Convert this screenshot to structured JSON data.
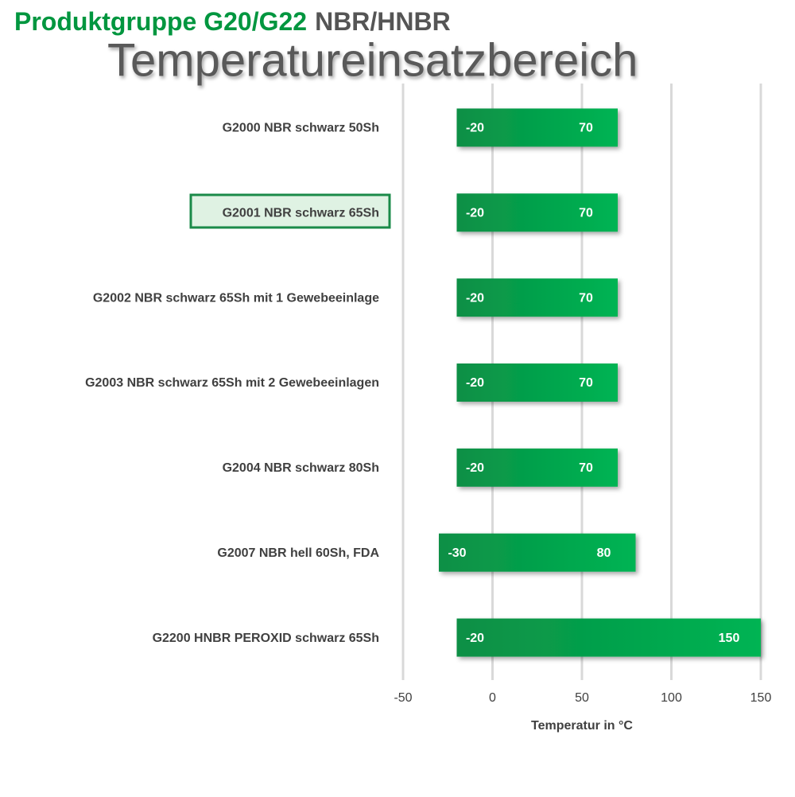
{
  "chart_data": {
    "type": "range_bar",
    "title": "Produktgruppe G20/G22",
    "title_suffix": "NBR/HNBR",
    "subtitle": "Temperatureinsatzbereich",
    "x_label": "Temperatur in °C",
    "categories": [
      "G2000 NBR schwarz 50Sh",
      "G2001 NBR schwarz 65Sh",
      "G2002 NBR schwarz 65Sh mit 1 Gewebeeinlage",
      "G2003 NBR schwarz 65Sh mit 2 Gewebeeinlagen",
      "G2004 NBR schwarz 80Sh",
      "G2007 NBR hell 60Sh, FDA",
      "G2200 HNBR PEROXID schwarz 65Sh"
    ],
    "series": [
      {
        "name": "min",
        "values": [
          -20,
          -20,
          -20,
          -20,
          -20,
          -30,
          -20
        ]
      },
      {
        "name": "max",
        "values": [
          70,
          70,
          70,
          70,
          70,
          80,
          150
        ]
      }
    ],
    "color": "#00a94f",
    "xlim": [
      -50,
      150
    ],
    "xticks": [
      -50,
      0,
      50,
      100,
      150
    ],
    "grid": true
  }
}
